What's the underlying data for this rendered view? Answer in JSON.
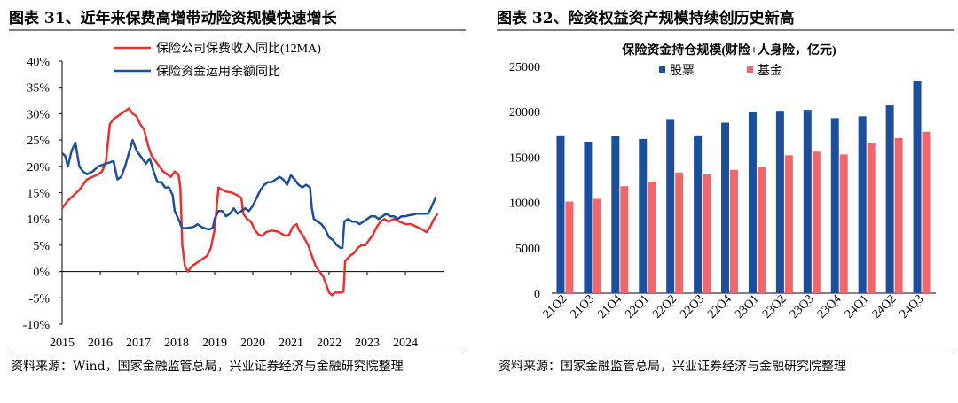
{
  "left": {
    "title": "图表 31、近年来保费高增带动险资规模快速增长",
    "source": "资料来源：Wind，国家金融监管总局，兴业证券经济与金融研究院整理"
  },
  "right": {
    "title": "图表 32、险资权益资产规模持续创历史新高",
    "source": "资料来源：国家金融监管总局，兴业证券经济与金融研究院整理"
  },
  "chart_data": [
    {
      "type": "line",
      "title": "",
      "xlabel": "",
      "ylabel": "",
      "x_ticks": [
        "2015",
        "2016",
        "2017",
        "2018",
        "2019",
        "2020",
        "2021",
        "2022",
        "2023",
        "2024"
      ],
      "y_ticks": [
        "40%",
        "35%",
        "30%",
        "25%",
        "20%",
        "15%",
        "10%",
        "5%",
        "0%",
        "-5%",
        "-10%"
      ],
      "xlim": [
        2015,
        2025
      ],
      "ylim": [
        -10,
        40
      ],
      "legend_position": "top-center",
      "series": [
        {
          "name": "保险公司保费收入同比(12MA)",
          "color": "#e8312f",
          "points": [
            [
              2015.0,
              12
            ],
            [
              2015.15,
              13.5
            ],
            [
              2015.3,
              14.5
            ],
            [
              2015.45,
              15.5
            ],
            [
              2015.55,
              16.5
            ],
            [
              2015.65,
              17.5
            ],
            [
              2015.8,
              18
            ],
            [
              2015.95,
              18.5
            ],
            [
              2016.05,
              19
            ],
            [
              2016.15,
              21
            ],
            [
              2016.25,
              28
            ],
            [
              2016.35,
              29
            ],
            [
              2016.45,
              29.5
            ],
            [
              2016.55,
              30
            ],
            [
              2016.65,
              30.5
            ],
            [
              2016.75,
              31
            ],
            [
              2016.85,
              30
            ],
            [
              2016.95,
              29.5
            ],
            [
              2017.05,
              28
            ],
            [
              2017.15,
              27
            ],
            [
              2017.25,
              24
            ],
            [
              2017.35,
              22
            ],
            [
              2017.45,
              21
            ],
            [
              2017.55,
              20
            ],
            [
              2017.65,
              19
            ],
            [
              2017.75,
              18.5
            ],
            [
              2017.85,
              18
            ],
            [
              2017.95,
              19
            ],
            [
              2018.05,
              18.5
            ],
            [
              2018.1,
              16
            ],
            [
              2018.15,
              5
            ],
            [
              2018.22,
              1
            ],
            [
              2018.3,
              0
            ],
            [
              2018.4,
              1
            ],
            [
              2018.5,
              1.5
            ],
            [
              2018.6,
              2
            ],
            [
              2018.7,
              2.5
            ],
            [
              2018.8,
              3
            ],
            [
              2018.9,
              4.5
            ],
            [
              2019.0,
              8
            ],
            [
              2019.1,
              16
            ],
            [
              2019.2,
              15.5
            ],
            [
              2019.3,
              15.2
            ],
            [
              2019.45,
              15
            ],
            [
              2019.6,
              14.5
            ],
            [
              2019.7,
              14
            ],
            [
              2019.75,
              11
            ],
            [
              2019.85,
              10
            ],
            [
              2019.95,
              9.5
            ],
            [
              2020.05,
              8
            ],
            [
              2020.15,
              7
            ],
            [
              2020.25,
              6.8
            ],
            [
              2020.35,
              7.5
            ],
            [
              2020.5,
              7.8
            ],
            [
              2020.65,
              7.6
            ],
            [
              2020.75,
              7.2
            ],
            [
              2020.85,
              6.8
            ],
            [
              2020.95,
              7
            ],
            [
              2021.05,
              8.5
            ],
            [
              2021.15,
              9
            ],
            [
              2021.2,
              8
            ],
            [
              2021.3,
              7
            ],
            [
              2021.45,
              5
            ],
            [
              2021.55,
              3
            ],
            [
              2021.65,
              1
            ],
            [
              2021.75,
              0
            ],
            [
              2021.85,
              -1
            ],
            [
              2021.95,
              -3
            ],
            [
              2022.0,
              -4
            ],
            [
              2022.08,
              -4.5
            ],
            [
              2022.15,
              -4
            ],
            [
              2022.3,
              -4
            ],
            [
              2022.38,
              -3.8
            ],
            [
              2022.42,
              2
            ],
            [
              2022.55,
              3
            ],
            [
              2022.65,
              3.5
            ],
            [
              2022.75,
              4.5
            ],
            [
              2022.85,
              5
            ],
            [
              2022.95,
              5
            ],
            [
              2023.05,
              6
            ],
            [
              2023.15,
              7
            ],
            [
              2023.25,
              8.5
            ],
            [
              2023.35,
              9.5
            ],
            [
              2023.45,
              10
            ],
            [
              2023.55,
              9.5
            ],
            [
              2023.7,
              10
            ],
            [
              2023.85,
              9.5
            ],
            [
              2024.0,
              9
            ],
            [
              2024.15,
              9
            ],
            [
              2024.3,
              8.5
            ],
            [
              2024.45,
              8
            ],
            [
              2024.55,
              7.5
            ],
            [
              2024.65,
              8.5
            ],
            [
              2024.75,
              10
            ],
            [
              2024.85,
              11
            ]
          ]
        },
        {
          "name": "保险资金运用余额同比",
          "color": "#1c4e9c",
          "points": [
            [
              2015.0,
              22.5
            ],
            [
              2015.08,
              22
            ],
            [
              2015.15,
              20
            ],
            [
              2015.25,
              23
            ],
            [
              2015.35,
              24.5
            ],
            [
              2015.45,
              20
            ],
            [
              2015.55,
              19
            ],
            [
              2015.65,
              18.5
            ],
            [
              2015.8,
              19
            ],
            [
              2015.95,
              20
            ],
            [
              2016.15,
              20.5
            ],
            [
              2016.35,
              21
            ],
            [
              2016.45,
              17.5
            ],
            [
              2016.55,
              18
            ],
            [
              2016.65,
              20
            ],
            [
              2016.75,
              22.5
            ],
            [
              2016.85,
              25
            ],
            [
              2016.95,
              23
            ],
            [
              2017.1,
              21.5
            ],
            [
              2017.2,
              20.5
            ],
            [
              2017.3,
              21.5
            ],
            [
              2017.4,
              19
            ],
            [
              2017.5,
              17
            ],
            [
              2017.6,
              17
            ],
            [
              2017.7,
              16
            ],
            [
              2017.8,
              16
            ],
            [
              2017.9,
              14.5
            ],
            [
              2017.95,
              11.5
            ],
            [
              2018.05,
              10
            ],
            [
              2018.15,
              8.2
            ],
            [
              2018.3,
              8.3
            ],
            [
              2018.45,
              8.5
            ],
            [
              2018.55,
              9
            ],
            [
              2018.65,
              8.5
            ],
            [
              2018.75,
              8.2
            ],
            [
              2018.85,
              8
            ],
            [
              2018.95,
              8.3
            ],
            [
              2019.0,
              10
            ],
            [
              2019.1,
              11.5
            ],
            [
              2019.2,
              11.5
            ],
            [
              2019.3,
              10.5
            ],
            [
              2019.4,
              11
            ],
            [
              2019.5,
              12
            ],
            [
              2019.6,
              11
            ],
            [
              2019.7,
              11.5
            ],
            [
              2019.8,
              12
            ],
            [
              2019.9,
              11.5
            ],
            [
              2020.0,
              12.5
            ],
            [
              2020.1,
              14
            ],
            [
              2020.2,
              15.5
            ],
            [
              2020.3,
              16.5
            ],
            [
              2020.4,
              17
            ],
            [
              2020.5,
              17
            ],
            [
              2020.6,
              17.5
            ],
            [
              2020.7,
              18
            ],
            [
              2020.8,
              17.5
            ],
            [
              2020.9,
              16.5
            ],
            [
              2021.0,
              18.3
            ],
            [
              2021.1,
              17.5
            ],
            [
              2021.2,
              16.5
            ],
            [
              2021.3,
              16
            ],
            [
              2021.4,
              16.5
            ],
            [
              2021.5,
              16
            ],
            [
              2021.55,
              12
            ],
            [
              2021.6,
              10
            ],
            [
              2021.7,
              9.5
            ],
            [
              2021.8,
              9
            ],
            [
              2021.9,
              8
            ],
            [
              2022.0,
              6.5
            ],
            [
              2022.1,
              6
            ],
            [
              2022.2,
              5
            ],
            [
              2022.3,
              4.5
            ],
            [
              2022.35,
              4.5
            ],
            [
              2022.4,
              9.5
            ],
            [
              2022.5,
              10
            ],
            [
              2022.6,
              9.5
            ],
            [
              2022.7,
              9.5
            ],
            [
              2022.8,
              9
            ],
            [
              2022.9,
              9.5
            ],
            [
              2023.0,
              10
            ],
            [
              2023.1,
              10.5
            ],
            [
              2023.2,
              10.5
            ],
            [
              2023.3,
              10
            ],
            [
              2023.4,
              10.5
            ],
            [
              2023.5,
              11
            ],
            [
              2023.6,
              10.5
            ],
            [
              2023.7,
              10.5
            ],
            [
              2023.8,
              10
            ],
            [
              2023.9,
              10.5
            ],
            [
              2024.0,
              10.5
            ],
            [
              2024.1,
              10.7
            ],
            [
              2024.2,
              10.8
            ],
            [
              2024.3,
              11
            ],
            [
              2024.4,
              11
            ],
            [
              2024.5,
              11
            ],
            [
              2024.6,
              11
            ],
            [
              2024.7,
              12.5
            ],
            [
              2024.8,
              14.2
            ]
          ]
        }
      ]
    },
    {
      "type": "bar",
      "title": "保险资金持仓规模(财险+人身险，亿元)",
      "xlabel": "",
      "ylabel": "",
      "categories": [
        "21Q2",
        "21Q3",
        "21Q4",
        "22Q1",
        "22Q2",
        "22Q3",
        "22Q4",
        "23Q1",
        "23Q2",
        "23Q3",
        "23Q4",
        "24Q1",
        "24Q2",
        "24Q3"
      ],
      "y_ticks": [
        "25000",
        "20000",
        "15000",
        "10000",
        "5000",
        "0"
      ],
      "ylim": [
        0,
        25000
      ],
      "legend_position": "top-left",
      "series": [
        {
          "name": "股票",
          "color": "#1c4e9c",
          "values": [
            17400,
            16700,
            17300,
            17000,
            19200,
            17400,
            18800,
            20000,
            20100,
            20200,
            19300,
            19500,
            20700,
            23400
          ]
        },
        {
          "name": "基金",
          "color": "#f0666a",
          "values": [
            10100,
            10400,
            11800,
            12300,
            13300,
            13100,
            13600,
            13900,
            15200,
            15600,
            15300,
            16500,
            17100,
            17800
          ]
        }
      ]
    }
  ]
}
